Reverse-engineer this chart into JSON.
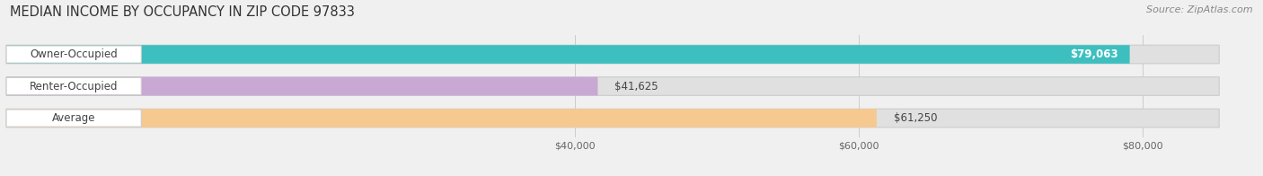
{
  "title": "MEDIAN INCOME BY OCCUPANCY IN ZIP CODE 97833",
  "source": "Source: ZipAtlas.com",
  "categories": [
    "Owner-Occupied",
    "Renter-Occupied",
    "Average"
  ],
  "values": [
    79063,
    41625,
    61250
  ],
  "bar_colors": [
    "#3dbfbf",
    "#c9a8d4",
    "#f5c990"
  ],
  "value_labels": [
    "$79,063",
    "$41,625",
    "$61,250"
  ],
  "xlim": [
    0,
    88000
  ],
  "xticks": [
    40000,
    60000,
    80000
  ],
  "xtick_labels": [
    "$40,000",
    "$60,000",
    "$80,000"
  ],
  "title_fontsize": 10.5,
  "source_fontsize": 8,
  "bar_label_fontsize": 8.5,
  "value_label_fontsize": 8.5,
  "figsize": [
    14.06,
    1.96
  ],
  "dpi": 100,
  "background_color": "#f0f0f0",
  "bar_height": 0.58,
  "bar_bg_color": "#e0e0e0",
  "pill_bg": "#ffffff",
  "pill_border": "#cccccc"
}
